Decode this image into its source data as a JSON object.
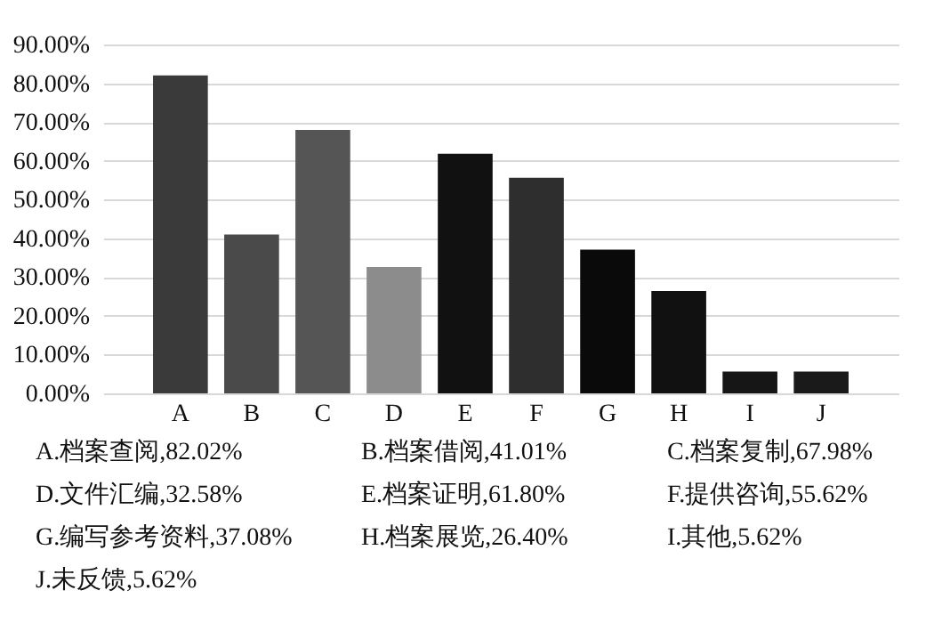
{
  "chart_data": {
    "type": "bar",
    "categories": [
      "A",
      "B",
      "C",
      "D",
      "E",
      "F",
      "G",
      "H",
      "I",
      "J"
    ],
    "values": [
      82.02,
      41.01,
      67.98,
      32.58,
      61.8,
      55.62,
      37.08,
      26.4,
      5.62,
      5.62
    ],
    "colors": [
      "#3a3a3a",
      "#4a4a4a",
      "#555555",
      "#8c8c8c",
      "#111111",
      "#2e2e2e",
      "#0a0a0a",
      "#111111",
      "#161616",
      "#1a1a1a"
    ],
    "ylim": [
      0,
      90
    ],
    "yticks": [
      {
        "value": 0,
        "label": "0.00%"
      },
      {
        "value": 10,
        "label": "10.00%"
      },
      {
        "value": 20,
        "label": "20.00%"
      },
      {
        "value": 30,
        "label": "30.00%"
      },
      {
        "value": 40,
        "label": "40.00%"
      },
      {
        "value": 50,
        "label": "50.00%"
      },
      {
        "value": 60,
        "label": "60.00%"
      },
      {
        "value": 70,
        "label": "70.00%"
      },
      {
        "value": 80,
        "label": "80.00%"
      },
      {
        "value": 90,
        "label": "90.00%"
      }
    ],
    "grid": "y",
    "annotations": [
      "A.档案查阅,82.02%",
      "B.档案借阅,41.01%",
      "C.档案复制,67.98%",
      "D.文件汇编,32.58%",
      "E.档案证明,61.80%",
      "F.提供咨询,55.62%",
      "G.编写参考资料,37.08%",
      "H.档案展览,26.40%",
      "I.其他,5.62%",
      "J.未反馈,5.62%"
    ]
  }
}
